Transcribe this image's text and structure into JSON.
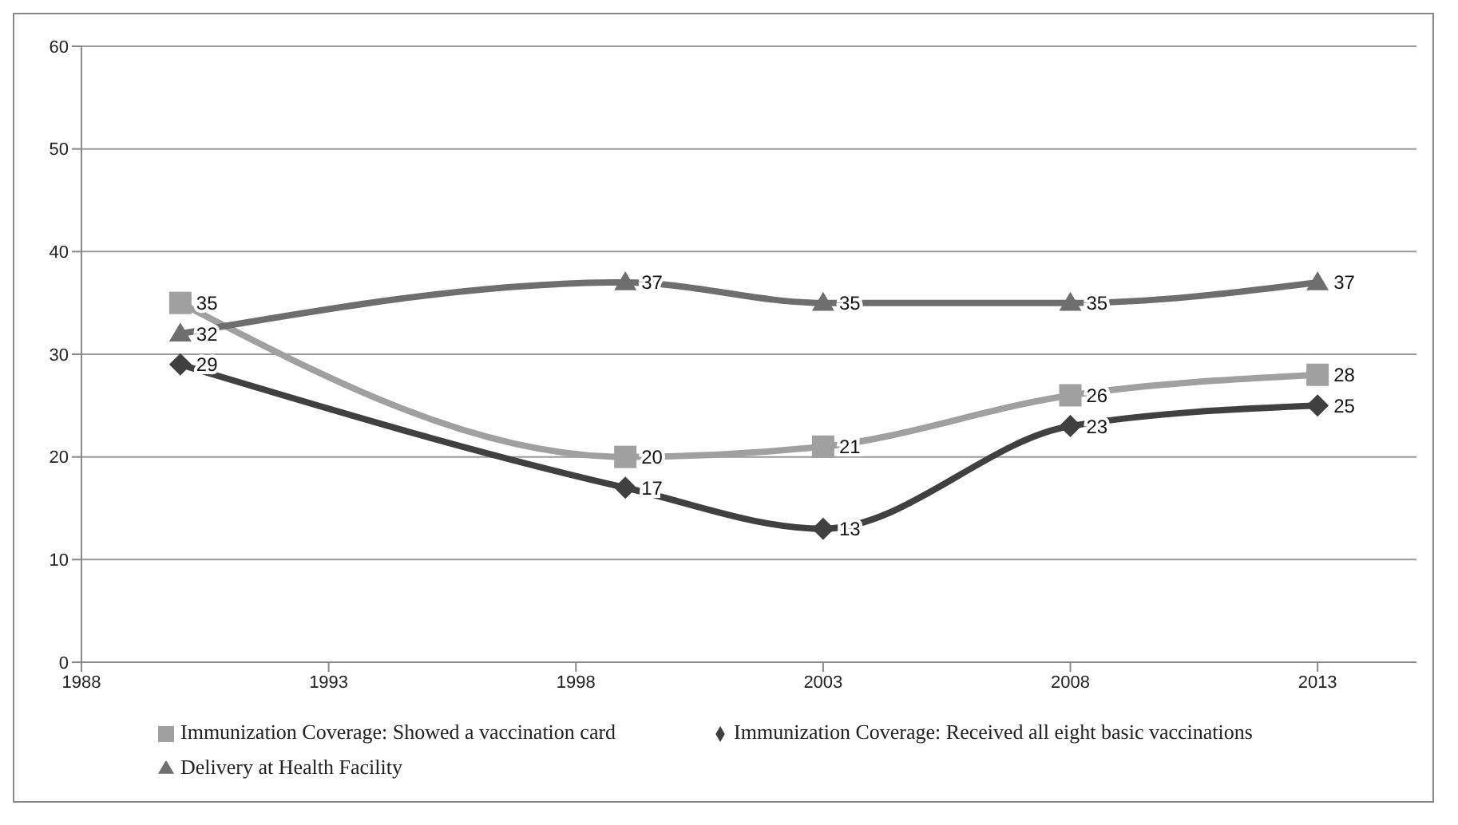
{
  "chart_data": {
    "type": "line",
    "x": [
      1990,
      1999,
      2003,
      2008,
      2013
    ],
    "series": [
      {
        "name": "Immunization Coverage: Showed a vaccination card",
        "color": "#a0a0a0",
        "marker": "square",
        "values": [
          35,
          20,
          21,
          26,
          28
        ]
      },
      {
        "name": "Immunization Coverage: Received all eight basic vaccinations",
        "color": "#404040",
        "marker": "diamond",
        "values": [
          29,
          17,
          13,
          23,
          25
        ]
      },
      {
        "name": "Delivery at Health Facility",
        "color": "#6e6e6e",
        "marker": "triangle",
        "values": [
          32,
          37,
          35,
          35,
          37
        ]
      }
    ],
    "xlim": [
      1988,
      2015
    ],
    "xticks": [
      1988,
      1993,
      1998,
      2003,
      2008,
      2013
    ],
    "ylim": [
      0,
      60
    ],
    "yticks": [
      0,
      10,
      20,
      30,
      40,
      50,
      60
    ],
    "grid": "y",
    "legend": "bottom",
    "data_labels": true,
    "line_style": "solid"
  }
}
